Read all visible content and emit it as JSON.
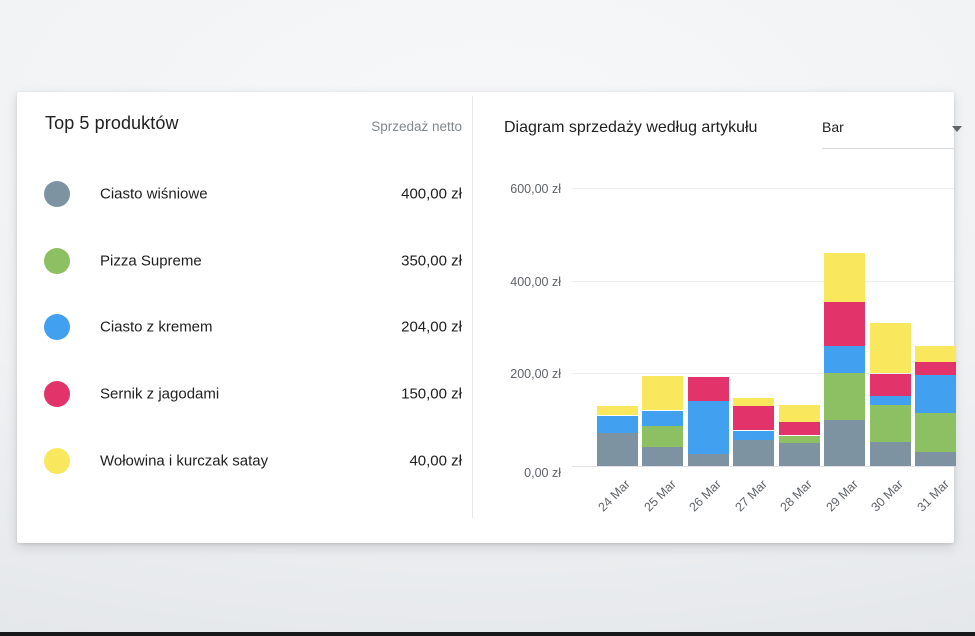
{
  "left_panel": {
    "title": "Top 5 produktów",
    "column_header": "Sprzedaż netto",
    "items": [
      {
        "name": "Ciasto wiśniowe",
        "value": "400,00 zł",
        "color": "#7d93a1"
      },
      {
        "name": "Pizza Supreme",
        "value": "350,00 zł",
        "color": "#8dc063"
      },
      {
        "name": "Ciasto z kremem",
        "value": "204,00 zł",
        "color": "#41a0ef"
      },
      {
        "name": "Sernik z jagodami",
        "value": "150,00 zł",
        "color": "#e2336b"
      },
      {
        "name": "Wołowina i kurczak satay",
        "value": "40,00 zł",
        "color": "#f9e75e"
      }
    ]
  },
  "right_panel": {
    "title": "Diagram sprzedaży według artykułu",
    "chart_type_select": {
      "value": "Bar",
      "icon": "chevron-down-icon"
    }
  },
  "chart_data": {
    "type": "bar",
    "stacked": true,
    "title": "Diagram sprzedaży według artykułu",
    "xlabel": "",
    "ylabel": "",
    "ylim": [
      0,
      600
    ],
    "grid": true,
    "legend_position": "none",
    "x_tick_rotation": -45,
    "y_ticks": [
      {
        "value": 0,
        "label": "0,00 zł"
      },
      {
        "value": 200,
        "label": "200,00 zł"
      },
      {
        "value": 400,
        "label": "400,00 zł"
      },
      {
        "value": 600,
        "label": "600,00 zł"
      }
    ],
    "categories": [
      "24 Mar",
      "25 Mar",
      "26 Mar",
      "27 Mar",
      "28 Mar",
      "29 Mar",
      "30 Mar",
      "31 Mar"
    ],
    "series": [
      {
        "name": "Ciasto wiśniowe",
        "color": "#7d93a1",
        "values": [
          72,
          40,
          26,
          57,
          50,
          99,
          52,
          30
        ]
      },
      {
        "name": "Pizza Supreme",
        "color": "#8dc063",
        "values": [
          0,
          47,
          0,
          0,
          16,
          101,
          80,
          84
        ]
      },
      {
        "name": "Ciasto z kremem",
        "color": "#41a0ef",
        "values": [
          37,
          33,
          115,
          20,
          0,
          58,
          20,
          82
        ]
      },
      {
        "name": "Sernik z jagodami",
        "color": "#e2336b",
        "values": [
          0,
          0,
          52,
          53,
          30,
          95,
          48,
          29
        ]
      },
      {
        "name": "Wołowina i kurczak satay",
        "color": "#f9e75e",
        "values": [
          20,
          74,
          0,
          18,
          37,
          105,
          107,
          34
        ]
      }
    ]
  }
}
